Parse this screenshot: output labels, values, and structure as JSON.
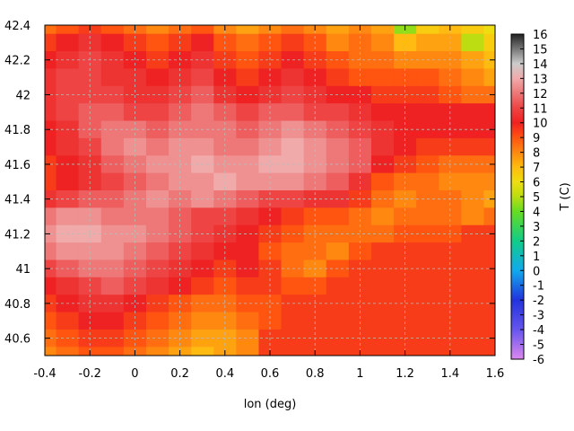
{
  "chart_data": {
    "type": "heatmap",
    "title": "",
    "xlabel": "lon (deg)",
    "ylabel": "",
    "colorbar_label": "T (C)",
    "xlim": [
      -0.4,
      1.6
    ],
    "ylim": [
      40.5,
      42.4
    ],
    "x_ticks": [
      -0.4,
      -0.2,
      0,
      0.2,
      0.4,
      0.6,
      0.8,
      1,
      1.2,
      1.4,
      1.6
    ],
    "x_tick_labels": [
      "-0.4",
      "-0.2",
      "0",
      "0.2",
      "0.4",
      "0.6",
      "0.8",
      "1",
      "1.2",
      "1.4",
      "1.6"
    ],
    "y_ticks": [
      40.6,
      40.8,
      41,
      41.2,
      41.4,
      41.6,
      41.8,
      42,
      42.2,
      42.4
    ],
    "y_tick_labels": [
      "40.6",
      "40.8",
      "41",
      "41.2",
      "41.4",
      "41.6",
      "41.8",
      "42",
      "42.2",
      "42.4"
    ],
    "colorbar_range": [
      -6,
      16
    ],
    "colorbar_ticks": [
      16,
      15,
      14,
      13,
      12,
      11,
      10,
      9,
      8,
      7,
      6,
      5,
      4,
      3,
      2,
      1,
      0,
      -1,
      -2,
      -3,
      -4,
      -5,
      -6
    ],
    "colorbar_tick_labels": [
      "16",
      "15",
      "14",
      "13",
      "12",
      "11",
      "10",
      "9",
      "8",
      "7",
      "6",
      "5",
      "4",
      "3",
      "2",
      "1",
      "0",
      "-1",
      "-2",
      "-3",
      "-4",
      "-5",
      "-6"
    ],
    "colormap_stops": [
      {
        "value": -6,
        "color": "#dd88ee"
      },
      {
        "value": -4,
        "color": "#6655ee"
      },
      {
        "value": -2,
        "color": "#2233dd"
      },
      {
        "value": 0,
        "color": "#11aaee"
      },
      {
        "value": 2,
        "color": "#11cc88"
      },
      {
        "value": 4,
        "color": "#66dd22"
      },
      {
        "value": 5,
        "color": "#bbdd11"
      },
      {
        "value": 6,
        "color": "#eedd11"
      },
      {
        "value": 7,
        "color": "#ffbb11"
      },
      {
        "value": 8,
        "color": "#ff8811"
      },
      {
        "value": 9,
        "color": "#ff5511"
      },
      {
        "value": 10,
        "color": "#ee2222"
      },
      {
        "value": 11,
        "color": "#ee4444"
      },
      {
        "value": 12,
        "color": "#ee7777"
      },
      {
        "value": 13,
        "color": "#f0aaaa"
      },
      {
        "value": 14,
        "color": "#cccccc"
      },
      {
        "value": 15,
        "color": "#777777"
      },
      {
        "value": 16,
        "color": "#222222"
      }
    ],
    "grid": true,
    "contours": true,
    "values_grid": {
      "lon": [
        -0.4,
        -0.3,
        -0.2,
        -0.1,
        0.0,
        0.1,
        0.2,
        0.3,
        0.4,
        0.5,
        0.6,
        0.7,
        0.8,
        0.9,
        1.0,
        1.1,
        1.2,
        1.3,
        1.4,
        1.5,
        1.6
      ],
      "lat": [
        42.4,
        42.3,
        42.2,
        42.1,
        42.0,
        41.9,
        41.8,
        41.7,
        41.6,
        41.5,
        41.4,
        41.3,
        41.2,
        41.1,
        41.0,
        40.9,
        40.8,
        40.7,
        40.6,
        40.5
      ],
      "T": [
        [
          8.5,
          9.0,
          9.5,
          9.0,
          8.5,
          8.0,
          8.5,
          9.0,
          8.0,
          7.5,
          8.0,
          8.5,
          8.0,
          7.5,
          8.0,
          7.5,
          4.5,
          6.5,
          7.0,
          6.5,
          6.0
        ],
        [
          9.5,
          10.0,
          10.5,
          10.0,
          9.5,
          9.0,
          9.5,
          10.0,
          9.0,
          8.5,
          9.0,
          9.5,
          9.0,
          8.0,
          8.5,
          8.0,
          7.0,
          7.5,
          7.5,
          5.0,
          6.5
        ],
        [
          10.0,
          10.5,
          11.0,
          10.5,
          10.0,
          9.5,
          10.0,
          10.5,
          9.5,
          9.0,
          9.5,
          10.0,
          9.5,
          9.0,
          8.5,
          8.5,
          8.0,
          8.0,
          8.0,
          7.5,
          7.0
        ],
        [
          10.5,
          11.0,
          11.0,
          10.5,
          10.5,
          10.0,
          10.5,
          11.0,
          10.0,
          9.5,
          10.0,
          10.5,
          10.0,
          9.5,
          9.0,
          9.0,
          9.0,
          9.0,
          8.5,
          8.0,
          7.5
        ],
        [
          10.5,
          11.0,
          11.0,
          11.0,
          10.5,
          10.5,
          11.0,
          11.5,
          10.5,
          10.0,
          10.5,
          11.0,
          10.5,
          10.0,
          10.0,
          9.5,
          9.5,
          9.5,
          9.0,
          8.5,
          8.5
        ],
        [
          10.5,
          11.0,
          11.5,
          11.5,
          11.0,
          11.0,
          11.5,
          12.0,
          11.5,
          11.0,
          11.5,
          11.5,
          11.0,
          11.0,
          10.5,
          10.0,
          10.0,
          10.0,
          10.0,
          10.0,
          10.0
        ],
        [
          10.0,
          10.5,
          11.5,
          12.0,
          12.0,
          11.5,
          12.0,
          12.0,
          12.0,
          11.5,
          12.0,
          12.5,
          12.0,
          11.5,
          11.0,
          10.5,
          10.0,
          10.0,
          10.0,
          10.0,
          10.0
        ],
        [
          10.0,
          10.5,
          11.0,
          12.0,
          12.5,
          12.0,
          12.5,
          12.5,
          12.0,
          12.0,
          12.5,
          13.0,
          12.5,
          12.0,
          11.5,
          10.5,
          10.0,
          9.5,
          9.5,
          9.5,
          9.5
        ],
        [
          9.5,
          10.0,
          10.5,
          11.5,
          12.0,
          12.5,
          12.5,
          13.0,
          12.5,
          12.5,
          13.0,
          13.0,
          12.5,
          12.0,
          11.5,
          10.0,
          9.5,
          9.0,
          8.5,
          8.5,
          8.5
        ],
        [
          9.5,
          10.0,
          10.5,
          11.0,
          11.5,
          12.0,
          12.5,
          12.5,
          13.0,
          12.5,
          12.5,
          12.5,
          12.0,
          11.5,
          10.5,
          9.0,
          8.5,
          8.5,
          8.0,
          8.0,
          8.0
        ],
        [
          10.5,
          11.0,
          11.5,
          11.5,
          12.0,
          12.5,
          12.0,
          12.5,
          12.0,
          11.5,
          11.0,
          11.0,
          10.5,
          10.5,
          9.5,
          8.5,
          8.0,
          8.5,
          8.5,
          8.0,
          7.5
        ],
        [
          12.0,
          12.5,
          12.5,
          12.0,
          12.0,
          12.0,
          11.5,
          11.0,
          11.0,
          10.5,
          10.0,
          9.5,
          9.0,
          9.0,
          8.5,
          8.0,
          8.5,
          8.5,
          8.5,
          8.0,
          8.5
        ],
        [
          12.5,
          13.0,
          13.0,
          12.5,
          12.5,
          12.0,
          11.5,
          11.0,
          10.5,
          10.0,
          9.5,
          9.0,
          8.5,
          8.5,
          8.5,
          8.5,
          9.0,
          9.0,
          9.0,
          9.5,
          9.5
        ],
        [
          12.0,
          12.5,
          12.5,
          12.5,
          12.0,
          11.5,
          11.0,
          10.5,
          10.0,
          10.0,
          9.0,
          8.5,
          8.5,
          8.0,
          9.0,
          9.5,
          9.5,
          9.5,
          9.5,
          9.5,
          9.5
        ],
        [
          11.0,
          11.5,
          12.0,
          12.0,
          11.5,
          11.0,
          10.5,
          10.0,
          9.5,
          10.0,
          9.5,
          8.5,
          8.0,
          9.0,
          9.5,
          9.5,
          9.5,
          9.5,
          9.5,
          9.5,
          9.5
        ],
        [
          10.0,
          10.5,
          11.0,
          11.5,
          11.0,
          10.5,
          10.0,
          9.5,
          9.0,
          9.5,
          9.5,
          9.0,
          9.0,
          9.5,
          9.5,
          9.5,
          9.5,
          9.5,
          9.5,
          9.5,
          9.5
        ],
        [
          9.5,
          10.0,
          10.5,
          10.5,
          10.0,
          9.5,
          9.0,
          8.5,
          8.5,
          9.0,
          9.0,
          9.5,
          9.5,
          9.5,
          9.5,
          9.5,
          9.5,
          9.5,
          9.5,
          9.5,
          9.5
        ],
        [
          9.0,
          9.5,
          10.0,
          10.0,
          9.5,
          9.0,
          8.5,
          8.0,
          8.0,
          8.5,
          9.0,
          9.5,
          9.5,
          9.5,
          9.5,
          9.5,
          9.5,
          9.5,
          9.5,
          9.5,
          9.5
        ],
        [
          8.5,
          9.0,
          9.5,
          9.5,
          9.0,
          8.5,
          8.0,
          7.5,
          7.5,
          8.0,
          9.5,
          9.5,
          9.5,
          9.5,
          9.5,
          9.5,
          9.5,
          9.5,
          9.5,
          9.5,
          9.5
        ],
        [
          8.0,
          8.5,
          9.0,
          9.0,
          8.5,
          8.0,
          7.5,
          7.0,
          7.5,
          8.0,
          9.5,
          9.5,
          9.5,
          9.5,
          9.5,
          9.5,
          9.5,
          9.5,
          9.5,
          9.5,
          9.5
        ]
      ]
    }
  }
}
